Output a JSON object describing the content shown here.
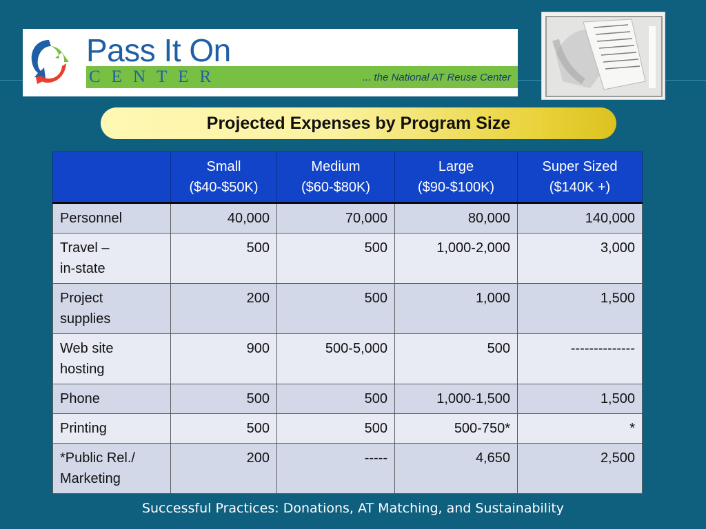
{
  "logo": {
    "title": "Pass It On",
    "subtitle": "CENTER",
    "tagline": "... the National AT Reuse Center"
  },
  "slide_title": "Projected Expenses by Program Size",
  "table": {
    "headers": [
      {
        "line1": "",
        "line2": ""
      },
      {
        "line1": "Small",
        "line2": "($40-$50K)"
      },
      {
        "line1": "Medium",
        "line2": "($60-$80K)"
      },
      {
        "line1": "Large",
        "line2": "($90-$100K)"
      },
      {
        "line1": "Super Sized",
        "line2": "($140K +)"
      }
    ],
    "rows": [
      {
        "label1": "Personnel",
        "label2": "",
        "values": [
          "40,000",
          "70,000",
          "80,000",
          "140,000"
        ]
      },
      {
        "label1": "Travel –",
        "label2": "in-state",
        "values": [
          "500",
          "500",
          "1,000-2,000",
          "3,000"
        ]
      },
      {
        "label1": "Project",
        "label2": "supplies",
        "values": [
          "200",
          "500",
          "1,000",
          "1,500"
        ]
      },
      {
        "label1": "Web site",
        "label2": "hosting",
        "values": [
          "900",
          "500-5,000",
          "500",
          "--------------"
        ]
      },
      {
        "label1": "Phone",
        "label2": "",
        "values": [
          "500",
          "500",
          "1,000-1,500",
          "1,500"
        ]
      },
      {
        "label1": "Printing",
        "label2": "",
        "values": [
          "500",
          "500",
          "500-750*",
          "*"
        ]
      },
      {
        "label1": "*Public Rel./",
        "label2": "Marketing",
        "values": [
          "200",
          "-----",
          "4,650",
          "2,500"
        ]
      }
    ]
  },
  "footer": "Successful Practices: Donations, AT Matching, and Sustainability",
  "colors": {
    "background": "#0f5f7e",
    "header_fill": "#1144c8",
    "row_odd": "#d3d8e9",
    "row_even": "#e9ebf4",
    "logo_blue": "#1f5fa6",
    "logo_green": "#78c043"
  }
}
